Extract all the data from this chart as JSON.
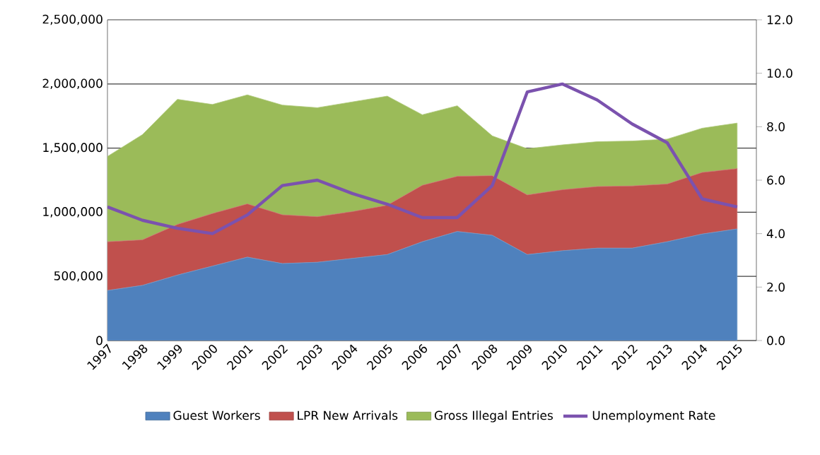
{
  "chart_data": {
    "type": "area",
    "stacked": true,
    "grid": "y",
    "legend": "bottom",
    "categories": [
      "1997",
      "1998",
      "1999",
      "2000",
      "2001",
      "2002",
      "2003",
      "2004",
      "2005",
      "2006",
      "2007",
      "2008",
      "2009",
      "2010",
      "2011",
      "2012",
      "2013",
      "2014",
      "2015"
    ],
    "series": [
      {
        "name": "Guest Workers",
        "color": "#4f81bd",
        "values": [
          390000,
          430000,
          510000,
          580000,
          650000,
          600000,
          610000,
          640000,
          670000,
          770000,
          850000,
          820000,
          670000,
          700000,
          720000,
          720000,
          770000,
          830000,
          870000
        ]
      },
      {
        "name": "LPR New Arrivals",
        "color": "#c0504d",
        "values": [
          380000,
          355000,
          395000,
          410000,
          415000,
          380000,
          355000,
          365000,
          385000,
          440000,
          430000,
          465000,
          465000,
          475000,
          480000,
          485000,
          450000,
          480000,
          470000
        ]
      },
      {
        "name": "Gross Illegal Entries",
        "color": "#9bbb59",
        "values": [
          665000,
          820000,
          975000,
          850000,
          850000,
          855000,
          850000,
          855000,
          850000,
          550000,
          550000,
          310000,
          360000,
          350000,
          350000,
          350000,
          350000,
          345000,
          355000
        ]
      },
      {
        "name": "Unemployment Rate",
        "type": "line",
        "axis": "y2",
        "color": "#7b52ae",
        "values": [
          5.0,
          4.5,
          4.2,
          4.0,
          4.7,
          5.8,
          6.0,
          5.5,
          5.1,
          4.6,
          4.6,
          5.8,
          9.3,
          9.6,
          9.0,
          8.1,
          7.4,
          5.3,
          5.0
        ]
      }
    ],
    "ylim": [
      0,
      2500000
    ],
    "yticks": [
      {
        "value": 0,
        "label": "0"
      },
      {
        "value": 500000,
        "label": "500,000"
      },
      {
        "value": 1000000,
        "label": "1,000,000"
      },
      {
        "value": 1500000,
        "label": "1,500,000"
      },
      {
        "value": 2000000,
        "label": "2,000,000"
      },
      {
        "value": 2500000,
        "label": "2,500,000"
      }
    ],
    "y2lim": [
      0,
      12
    ],
    "y2ticks": [
      {
        "value": 0,
        "label": "0.0"
      },
      {
        "value": 2,
        "label": "2.0"
      },
      {
        "value": 4,
        "label": "4.0"
      },
      {
        "value": 6,
        "label": "6.0"
      },
      {
        "value": 8,
        "label": "8.0"
      },
      {
        "value": 10,
        "label": "10.0"
      },
      {
        "value": 12,
        "label": "12.0"
      }
    ]
  }
}
